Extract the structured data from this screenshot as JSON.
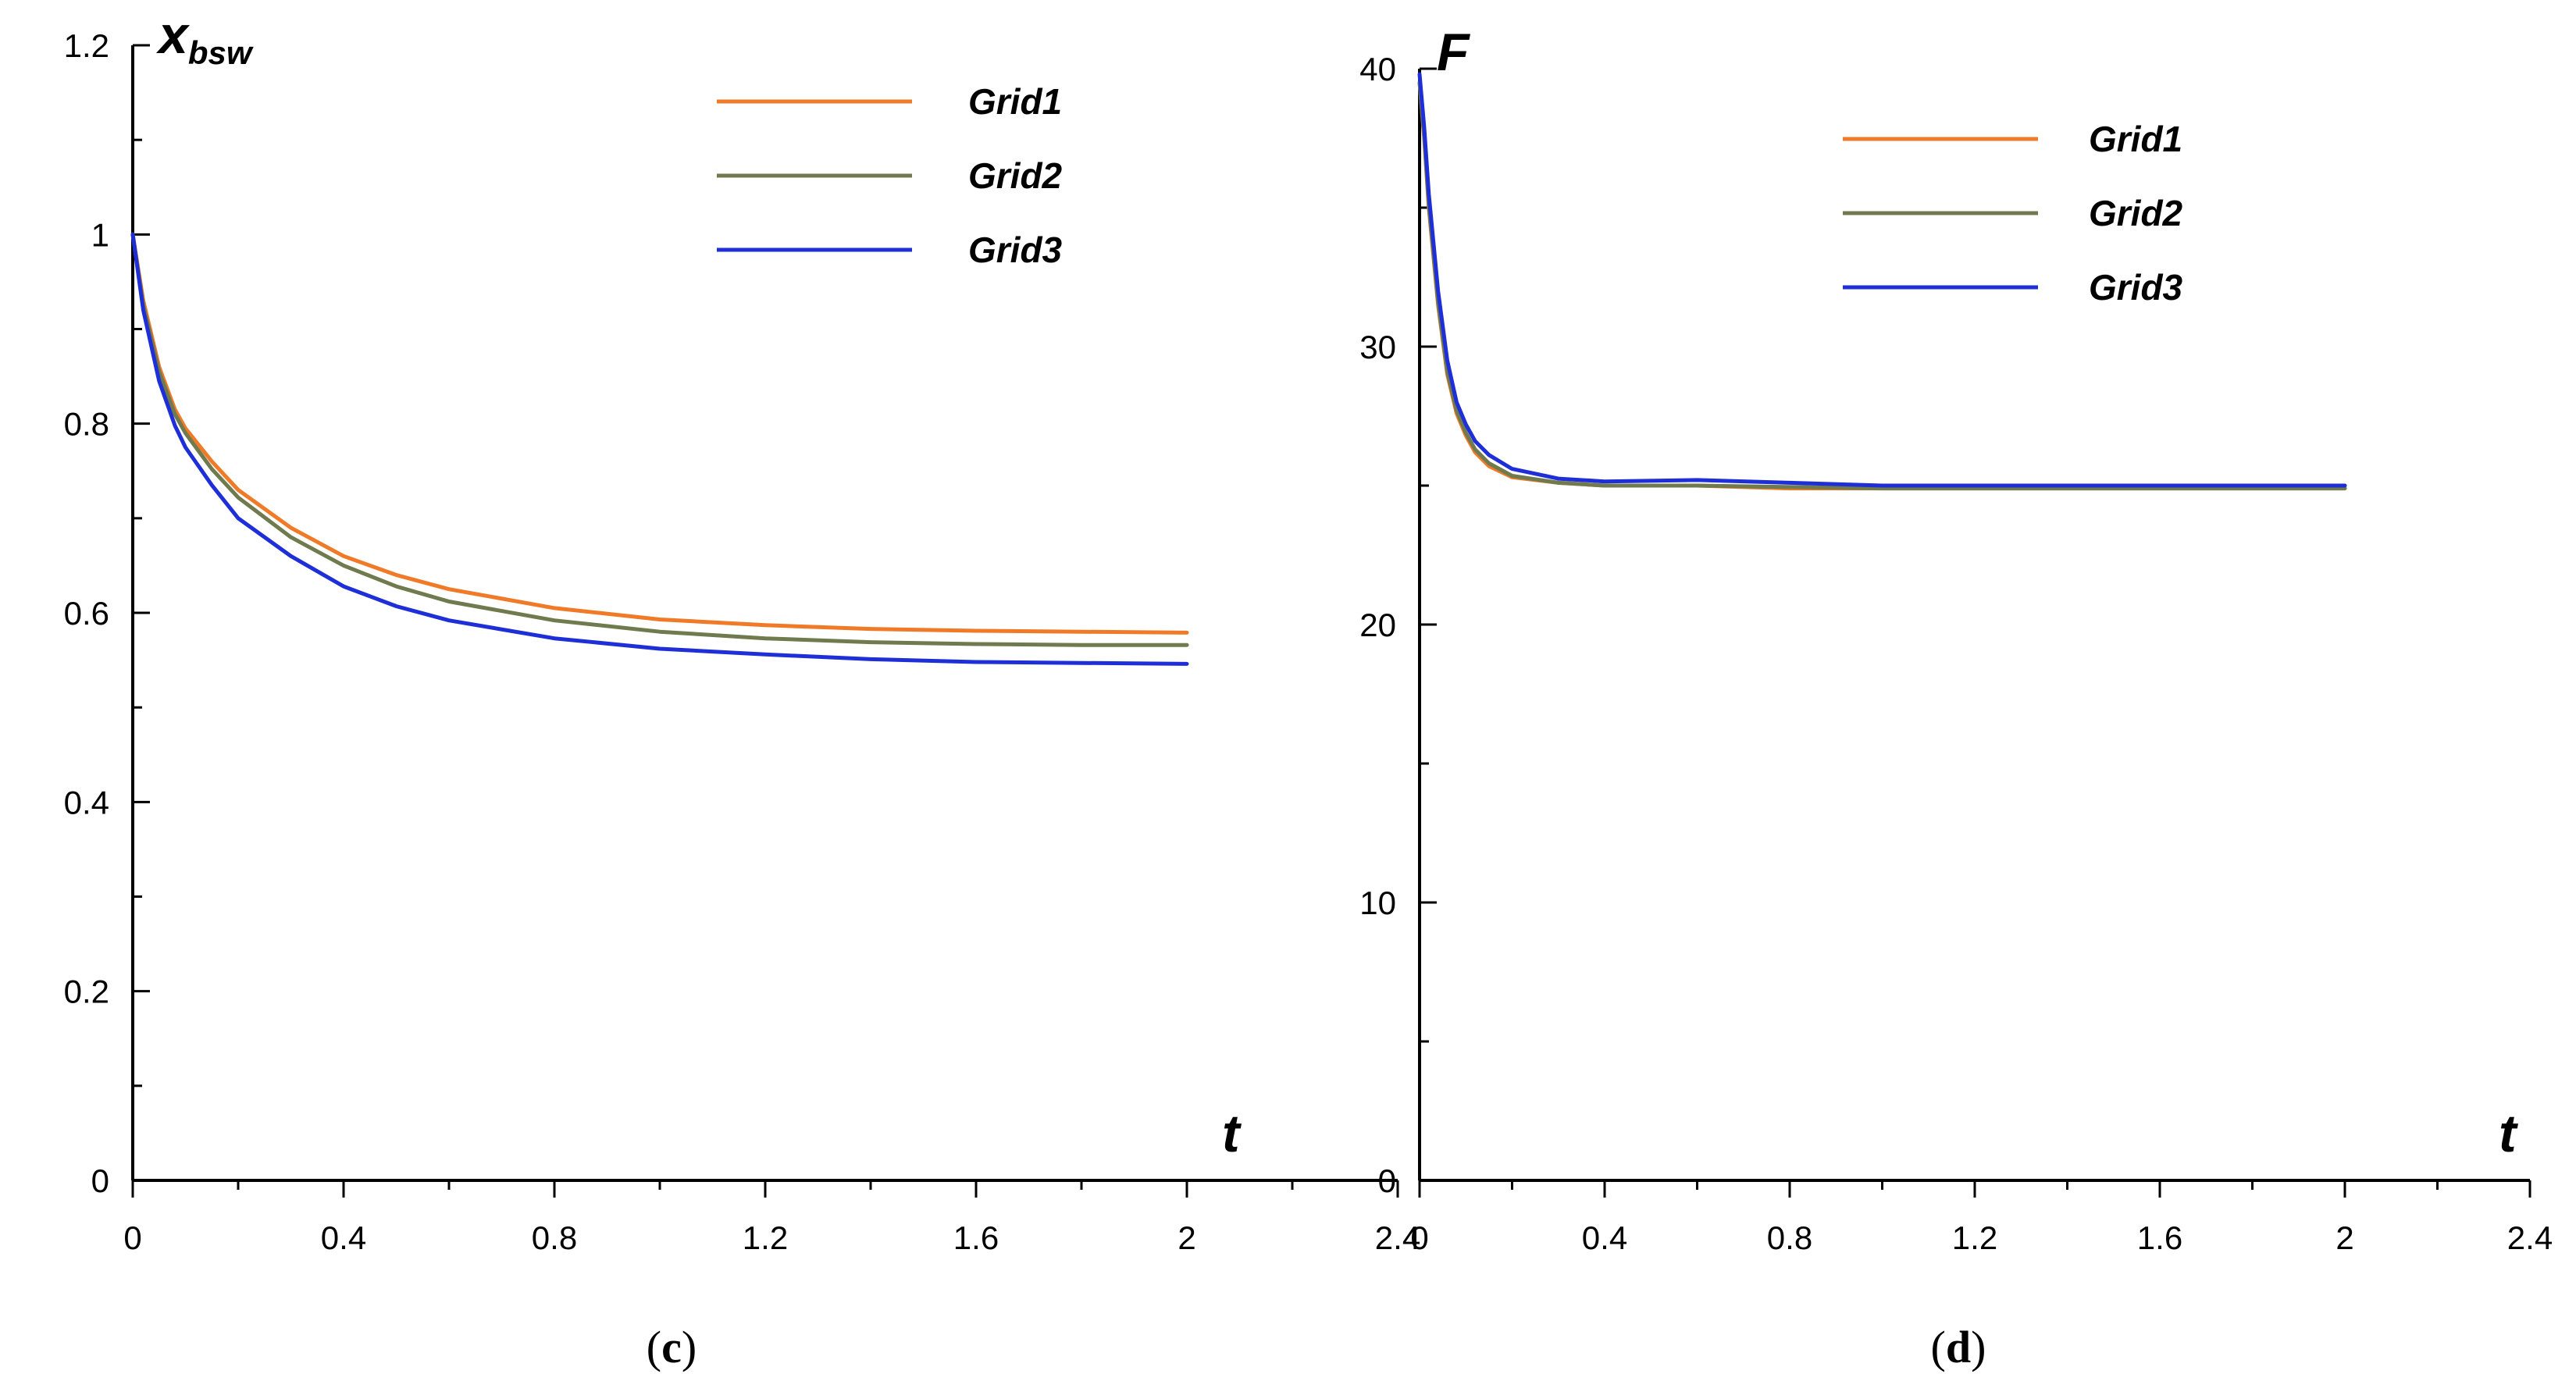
{
  "colors": {
    "grid1": "#f07a28",
    "grid2": "#6f7a4e",
    "grid3": "#1f2fd8",
    "axis": "#000000"
  },
  "chart_data": [
    {
      "id": "c",
      "type": "line",
      "panel_label": {
        "open": "(",
        "letter": "c",
        "close": ")"
      },
      "title": "",
      "ylabel": {
        "main": "x",
        "sub": "bsw"
      },
      "xlabel": "t",
      "xlim": [
        0,
        2.4
      ],
      "ylim": [
        0,
        1.2
      ],
      "xticks": [
        0,
        0.4,
        0.8,
        1.2,
        1.6,
        2,
        2.4
      ],
      "xtick_labels": [
        "0",
        "0.4",
        "0.8",
        "1.2",
        "1.6",
        "2",
        "2.4"
      ],
      "yticks": [
        0,
        0.2,
        0.4,
        0.6,
        0.8,
        1,
        1.2
      ],
      "ytick_labels": [
        "0",
        "0.2",
        "0.4",
        "0.6",
        "0.8",
        "1",
        "1.2"
      ],
      "legend_position": "top-right",
      "series": [
        {
          "name": "Grid1",
          "color_key": "grid1",
          "x": [
            0,
            0.02,
            0.05,
            0.08,
            0.1,
            0.15,
            0.2,
            0.3,
            0.4,
            0.5,
            0.6,
            0.8,
            1.0,
            1.2,
            1.4,
            1.6,
            1.8,
            2.0
          ],
          "y": [
            1.0,
            0.93,
            0.86,
            0.815,
            0.795,
            0.76,
            0.73,
            0.69,
            0.66,
            0.64,
            0.625,
            0.605,
            0.593,
            0.587,
            0.583,
            0.581,
            0.58,
            0.579
          ]
        },
        {
          "name": "Grid2",
          "color_key": "grid2",
          "x": [
            0,
            0.02,
            0.05,
            0.08,
            0.1,
            0.15,
            0.2,
            0.3,
            0.4,
            0.5,
            0.6,
            0.8,
            1.0,
            1.2,
            1.4,
            1.6,
            1.8,
            2.0
          ],
          "y": [
            1.0,
            0.925,
            0.855,
            0.81,
            0.79,
            0.752,
            0.722,
            0.68,
            0.65,
            0.628,
            0.612,
            0.592,
            0.58,
            0.573,
            0.569,
            0.567,
            0.566,
            0.566
          ]
        },
        {
          "name": "Grid3",
          "color_key": "grid3",
          "x": [
            0,
            0.02,
            0.05,
            0.08,
            0.1,
            0.15,
            0.2,
            0.3,
            0.4,
            0.5,
            0.6,
            0.8,
            1.0,
            1.2,
            1.4,
            1.6,
            1.8,
            2.0
          ],
          "y": [
            1.0,
            0.92,
            0.845,
            0.798,
            0.775,
            0.735,
            0.7,
            0.66,
            0.628,
            0.607,
            0.592,
            0.573,
            0.562,
            0.556,
            0.551,
            0.548,
            0.547,
            0.546
          ]
        }
      ]
    },
    {
      "id": "d",
      "type": "line",
      "panel_label": {
        "open": "(",
        "letter": "d",
        "close": ")"
      },
      "title": "",
      "ylabel": {
        "main": "F",
        "sub": ""
      },
      "xlabel": "t",
      "xlim": [
        0,
        2.4
      ],
      "ylim": [
        0,
        40
      ],
      "xticks": [
        0,
        0.4,
        0.8,
        1.2,
        1.6,
        2,
        2.4
      ],
      "xtick_labels": [
        "0",
        "0.4",
        "0.8",
        "1.2",
        "1.6",
        "2",
        "2.4"
      ],
      "yticks": [
        0,
        10,
        20,
        30,
        40
      ],
      "ytick_labels": [
        "0",
        "10",
        "20",
        "30",
        "40"
      ],
      "legend_position": "top-right",
      "series": [
        {
          "name": "Grid1",
          "color_key": "grid1",
          "x": [
            0,
            0.01,
            0.02,
            0.04,
            0.06,
            0.08,
            0.1,
            0.12,
            0.15,
            0.2,
            0.3,
            0.4,
            0.6,
            0.8,
            1.0,
            1.4,
            1.8,
            2.0
          ],
          "y": [
            39.5,
            37.5,
            35.0,
            31.5,
            29.0,
            27.6,
            26.8,
            26.2,
            25.7,
            25.3,
            25.1,
            25.0,
            25.0,
            24.9,
            24.9,
            24.9,
            24.9,
            24.9
          ]
        },
        {
          "name": "Grid2",
          "color_key": "grid2",
          "x": [
            0,
            0.01,
            0.02,
            0.04,
            0.06,
            0.08,
            0.1,
            0.12,
            0.15,
            0.2,
            0.3,
            0.4,
            0.6,
            0.8,
            1.0,
            1.4,
            1.8,
            2.0
          ],
          "y": [
            39.5,
            37.6,
            35.1,
            31.6,
            29.1,
            27.7,
            26.9,
            26.3,
            25.8,
            25.35,
            25.1,
            25.0,
            25.0,
            24.95,
            24.9,
            24.9,
            24.9,
            24.9
          ]
        },
        {
          "name": "Grid3",
          "color_key": "grid3",
          "x": [
            0,
            0.01,
            0.02,
            0.04,
            0.06,
            0.08,
            0.1,
            0.12,
            0.15,
            0.2,
            0.3,
            0.4,
            0.6,
            0.8,
            1.0,
            1.4,
            1.8,
            2.0
          ],
          "y": [
            39.8,
            37.9,
            35.5,
            32.0,
            29.5,
            28.0,
            27.2,
            26.6,
            26.1,
            25.6,
            25.25,
            25.15,
            25.2,
            25.1,
            25.0,
            25.0,
            25.0,
            25.0
          ]
        }
      ]
    }
  ]
}
